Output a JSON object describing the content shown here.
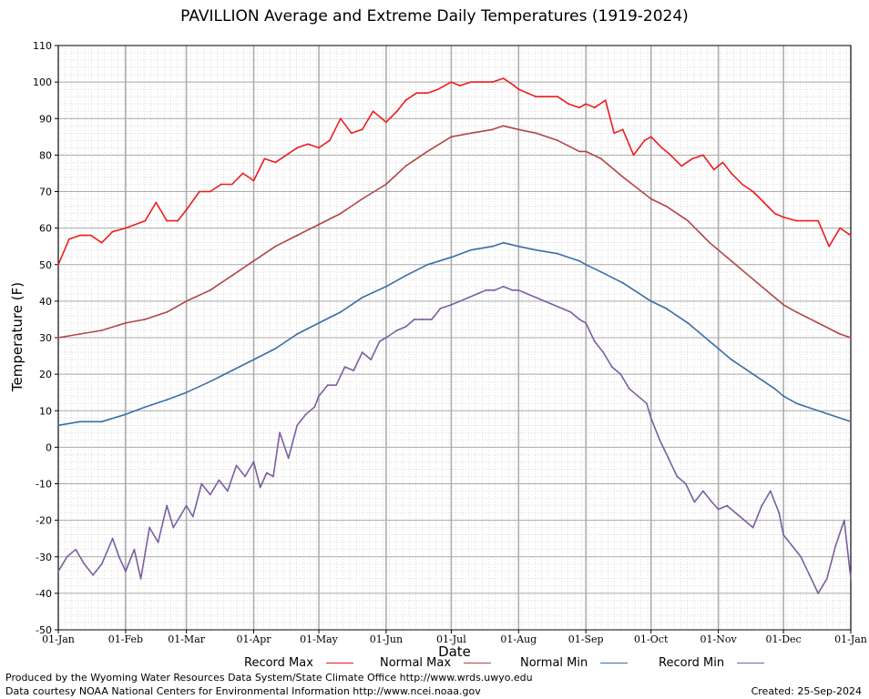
{
  "chart_data": {
    "type": "line",
    "title": "PAVILLION Average and Extreme Daily Temperatures (1919-2024)",
    "xlabel": "Date",
    "ylabel": "Temperature (F)",
    "ylim": [
      -50,
      110
    ],
    "y_ticks": [
      "-50",
      "-40",
      "-30",
      "-20",
      "-10",
      "0",
      "10",
      "20",
      "30",
      "40",
      "50",
      "60",
      "70",
      "80",
      "90",
      "100",
      "110"
    ],
    "x_ticks": [
      "01-Jan",
      "01-Feb",
      "01-Mar",
      "01-Apr",
      "01-May",
      "01-Jun",
      "01-Jul",
      "01-Aug",
      "01-Sep",
      "01-Oct",
      "01-Nov",
      "01-Dec",
      "01-Jan"
    ],
    "x_tick_days": [
      0,
      31,
      59,
      90,
      120,
      151,
      181,
      212,
      243,
      273,
      304,
      334,
      365
    ],
    "grid": true,
    "legend_position": "bottom",
    "series": [
      {
        "name": "Record Max",
        "color": "#ee1c1c",
        "x_days": [
          0,
          5,
          10,
          15,
          20,
          25,
          31,
          40,
          45,
          50,
          55,
          59,
          65,
          70,
          75,
          80,
          85,
          90,
          95,
          100,
          105,
          110,
          115,
          120,
          125,
          130,
          135,
          140,
          145,
          151,
          156,
          160,
          165,
          170,
          175,
          181,
          185,
          190,
          195,
          200,
          205,
          210,
          212,
          216,
          220,
          225,
          230,
          235,
          240,
          243,
          247,
          252,
          256,
          260,
          265,
          270,
          273,
          278,
          282,
          287,
          292,
          297,
          302,
          306,
          310,
          315,
          320,
          325,
          330,
          334,
          340,
          345,
          350,
          355,
          360,
          365
        ],
        "values": [
          50,
          57,
          58,
          58,
          56,
          59,
          60,
          62,
          67,
          62,
          62,
          65,
          70,
          70,
          72,
          72,
          75,
          73,
          79,
          78,
          80,
          82,
          83,
          82,
          84,
          90,
          86,
          87,
          92,
          89,
          92,
          95,
          97,
          97,
          98,
          100,
          99,
          100,
          100,
          100,
          101,
          99,
          98,
          97,
          96,
          96,
          96,
          94,
          93,
          94,
          93,
          95,
          86,
          87,
          80,
          84,
          85,
          82,
          80,
          77,
          79,
          80,
          76,
          78,
          75,
          72,
          70,
          67,
          64,
          63,
          62,
          62,
          62,
          55,
          60,
          58
        ]
      },
      {
        "name": "Normal Max",
        "color": "#b34545",
        "x_days": [
          0,
          10,
          20,
          31,
          40,
          50,
          59,
          70,
          80,
          90,
          100,
          110,
          120,
          130,
          140,
          151,
          160,
          170,
          181,
          190,
          200,
          205,
          212,
          220,
          230,
          240,
          243,
          250,
          260,
          273,
          280,
          290,
          300,
          304,
          310,
          320,
          330,
          334,
          340,
          350,
          360,
          365
        ],
        "values": [
          30,
          31,
          32,
          34,
          35,
          37,
          40,
          43,
          47,
          51,
          55,
          58,
          61,
          64,
          68,
          72,
          77,
          81,
          85,
          86,
          87,
          88,
          87,
          86,
          84,
          81,
          81,
          79,
          74,
          68,
          66,
          62,
          56,
          54,
          51,
          46,
          41,
          39,
          37,
          34,
          31,
          30
        ]
      },
      {
        "name": "Normal Min",
        "color": "#3a6ea5",
        "x_days": [
          0,
          10,
          20,
          31,
          40,
          50,
          59,
          70,
          80,
          90,
          100,
          110,
          120,
          130,
          140,
          151,
          160,
          170,
          181,
          190,
          200,
          205,
          212,
          220,
          230,
          240,
          243,
          250,
          260,
          273,
          280,
          290,
          300,
          304,
          310,
          320,
          330,
          334,
          340,
          350,
          360,
          365
        ],
        "values": [
          6,
          7,
          7,
          9,
          11,
          13,
          15,
          18,
          21,
          24,
          27,
          31,
          34,
          37,
          41,
          44,
          47,
          50,
          52,
          54,
          55,
          56,
          55,
          54,
          53,
          51,
          50,
          48,
          45,
          40,
          38,
          34,
          29,
          27,
          24,
          20,
          16,
          14,
          12,
          10,
          8,
          7
        ]
      },
      {
        "name": "Record Min",
        "color": "#7a5fa0",
        "x_days": [
          0,
          4,
          8,
          12,
          16,
          20,
          25,
          28,
          31,
          35,
          38,
          42,
          46,
          50,
          53,
          56,
          59,
          62,
          66,
          70,
          74,
          78,
          82,
          86,
          90,
          93,
          96,
          99,
          102,
          106,
          110,
          114,
          118,
          120,
          124,
          128,
          132,
          136,
          140,
          144,
          148,
          151,
          156,
          160,
          164,
          168,
          172,
          176,
          181,
          185,
          189,
          193,
          197,
          201,
          205,
          209,
          212,
          216,
          220,
          224,
          228,
          232,
          236,
          240,
          243,
          247,
          251,
          255,
          259,
          263,
          267,
          271,
          273,
          277,
          281,
          285,
          289,
          293,
          297,
          301,
          304,
          308,
          312,
          316,
          320,
          324,
          328,
          332,
          334,
          338,
          342,
          346,
          350,
          354,
          358,
          362,
          365
        ],
        "values": [
          -34,
          -30,
          -28,
          -32,
          -35,
          -32,
          -25,
          -30,
          -34,
          -28,
          -36,
          -22,
          -26,
          -16,
          -22,
          -19,
          -16,
          -19,
          -10,
          -13,
          -9,
          -12,
          -5,
          -8,
          -4,
          -11,
          -7,
          -8,
          4,
          -3,
          6,
          9,
          11,
          14,
          17,
          17,
          22,
          21,
          26,
          24,
          29,
          30,
          32,
          33,
          35,
          35,
          35,
          38,
          39,
          40,
          41,
          42,
          43,
          43,
          44,
          43,
          43,
          42,
          41,
          40,
          39,
          38,
          37,
          35,
          34,
          29,
          26,
          22,
          20,
          16,
          14,
          12,
          8,
          2,
          -3,
          -8,
          -10,
          -15,
          -12,
          -15,
          -17,
          -16,
          -18,
          -20,
          -22,
          -16,
          -12,
          -18,
          -24,
          -27,
          -30,
          -35,
          -40,
          -36,
          -27,
          -20,
          -36
        ]
      }
    ]
  },
  "legend": {
    "record_max": "Record Max",
    "normal_max": "Normal Max",
    "normal_min": "Normal Min",
    "record_min": "Record Min"
  },
  "credits": {
    "produced_by": "Produced by the Wyoming Water Resources Data System/State Climate Office http://www.wrds.uwyo.edu",
    "data_courtesy": "Data courtesy NOAA National Centers for Environmental Information http://www.ncei.noaa.gov",
    "created": "Created: 25-Sep-2024"
  }
}
